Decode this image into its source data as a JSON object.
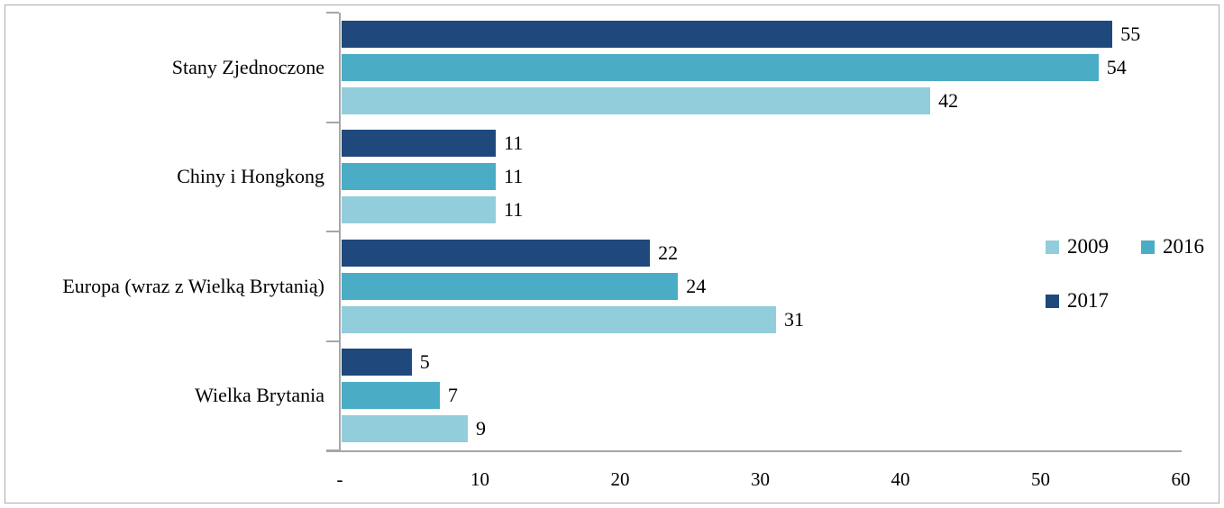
{
  "chart_data": {
    "type": "bar",
    "orientation": "horizontal",
    "title": "",
    "categories": [
      "Stany Zjednoczone",
      "Chiny i Hongkong",
      "Europa (wraz z Wielką Brytanią)",
      "Wielka Brytania"
    ],
    "series": [
      {
        "name": "2009",
        "color": "#92CDDC",
        "values": [
          42,
          11,
          31,
          9
        ]
      },
      {
        "name": "2016",
        "color": "#4BACC6",
        "values": [
          54,
          11,
          24,
          7
        ]
      },
      {
        "name": "2017",
        "color": "#1F497D",
        "values": [
          55,
          11,
          22,
          5
        ]
      }
    ],
    "bar_order_top_to_bottom": [
      "2017",
      "2016",
      "2009"
    ],
    "value_labels_shown": true,
    "xlim": [
      0,
      60
    ],
    "x_ticks": [
      {
        "value": 0,
        "label": "-"
      },
      {
        "value": 10,
        "label": "10"
      },
      {
        "value": 20,
        "label": "20"
      },
      {
        "value": 30,
        "label": "30"
      },
      {
        "value": 40,
        "label": "40"
      },
      {
        "value": 50,
        "label": "50"
      },
      {
        "value": 60,
        "label": "60"
      }
    ],
    "grid": false,
    "legend": {
      "position": "right",
      "rows": [
        [
          "2009",
          "2016"
        ],
        [
          "2017"
        ]
      ]
    },
    "colors": {
      "axis": "#a6a6a6",
      "text": "#000000",
      "background": "#ffffff",
      "frame_border": "#ababab"
    }
  }
}
